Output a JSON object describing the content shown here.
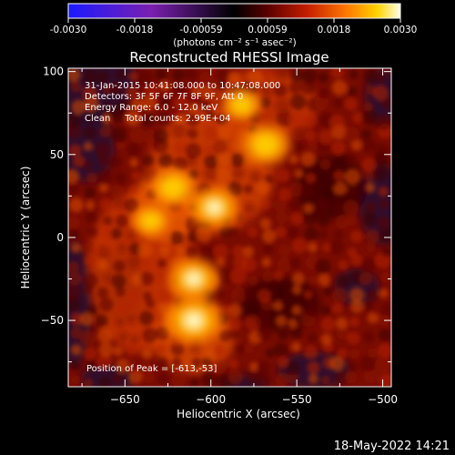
{
  "colorbar": {
    "ticks": [
      "-0.0030",
      "-0.0018",
      "-0.00059",
      "0.00059",
      "0.0018",
      "0.0030"
    ],
    "unit_label": "(photons cm⁻² s⁻¹ asec⁻²)",
    "colors": [
      "#1a1aff",
      "#7b1fb0",
      "#000000",
      "#5a0000",
      "#c41e00",
      "#ff7a00",
      "#ffd200",
      "#ffffe6"
    ]
  },
  "chart_data": {
    "type": "heatmap",
    "title": "Reconstructed RHESSI Image",
    "xlabel": "Heliocentric X (arcsec)",
    "ylabel": "Heliocentric Y (arcsec)",
    "xlim": [
      -683,
      -495
    ],
    "ylim": [
      -90,
      102
    ],
    "xticks": [
      -650,
      -600,
      -550,
      -500
    ],
    "yticks": [
      -50,
      0,
      50,
      100
    ],
    "value_range": [
      -0.003,
      0.003
    ],
    "annotations": {
      "time": "31-Jan-2015 10:41:08.000 to 10:47:08.000",
      "detectors": "Detectors: 3F 5F 6F 7F 8F 9F, Att 0",
      "energy": "Energy Range: 6.0 - 12.0 keV",
      "method": "Clean     Total counts: 2.99E+04",
      "peak": "Position of Peak = [-613,-53]"
    },
    "peak": {
      "x": -613,
      "y": -53
    },
    "bright_sources": [
      {
        "x": -610,
        "y": -50,
        "intensity": 1.0
      },
      {
        "x": -610,
        "y": -25,
        "intensity": 0.85
      },
      {
        "x": -598,
        "y": 18,
        "intensity": 0.82
      },
      {
        "x": -622,
        "y": 30,
        "intensity": 0.72
      },
      {
        "x": -568,
        "y": 56,
        "intensity": 0.8
      },
      {
        "x": -582,
        "y": 80,
        "intensity": 0.6
      },
      {
        "x": -635,
        "y": 10,
        "intensity": 0.55
      }
    ]
  },
  "footer_date": "18-May-2022 14:21"
}
